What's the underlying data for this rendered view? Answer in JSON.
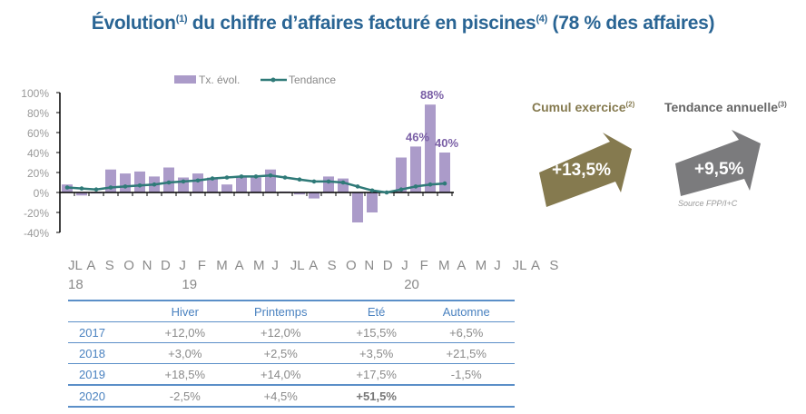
{
  "title": {
    "main": "Évolution",
    "sup1": "(1)",
    "mid": " du chiffre d’affaires facturé en piscines",
    "sup2": "(4)",
    "end": " (78 % des affaires)"
  },
  "chart_data": {
    "type": "bar",
    "legend": [
      "Tx. évol.",
      "Tendance"
    ],
    "legend_placement": "top",
    "ylim": [
      -40,
      100
    ],
    "yticks": [
      "100%",
      "80%",
      "60%",
      "40%",
      "20%",
      "0%",
      "-20%",
      "-40%"
    ],
    "ytick_values": [
      100,
      80,
      60,
      40,
      20,
      0,
      -20,
      -40
    ],
    "months": [
      "JL",
      "A",
      "S",
      "O",
      "N",
      "D",
      "J",
      "F",
      "M",
      "A",
      "M",
      "J",
      "JL",
      "A",
      "S",
      "O",
      "N",
      "D",
      "J",
      "F",
      "M",
      "A",
      "M",
      "J",
      "JL",
      "A",
      "S"
    ],
    "years": [
      {
        "label": "18",
        "month_index": 0
      },
      {
        "label": "19",
        "month_index": 6
      },
      {
        "label": "20",
        "month_index": 18
      }
    ],
    "series": [
      {
        "name": "Tx. évol.",
        "type": "bar",
        "color": "#ab9bc9",
        "values": [
          8,
          -3,
          -1,
          23,
          19,
          21,
          16,
          25,
          15,
          19,
          15,
          8,
          15,
          15,
          23,
          1,
          -2,
          -6,
          16,
          14,
          -30,
          -20,
          0,
          35,
          46,
          88,
          40
        ]
      },
      {
        "name": "Tendance",
        "type": "line",
        "color": "#2f7a78",
        "values": [
          5,
          4,
          3,
          5,
          6,
          7,
          8,
          10,
          11,
          12,
          14,
          15,
          16,
          16,
          17,
          15,
          13,
          11,
          11,
          10,
          6,
          2,
          0,
          3,
          6,
          8,
          9
        ]
      }
    ],
    "data_labels": [
      {
        "index": 24,
        "text": "46%"
      },
      {
        "index": 25,
        "text": "88%"
      },
      {
        "index": 26,
        "text": "40%"
      }
    ]
  },
  "kpis": [
    {
      "label": "Cumul exercice",
      "sup": "(2)",
      "value": "+13,5%",
      "color": "#857a4f"
    },
    {
      "label": "Tendance annuelle",
      "sup": "(3)",
      "value": "+9,5%",
      "color": "#7b7b7d"
    }
  ],
  "source": "Source FPP/I+C",
  "table": {
    "headers": [
      "",
      "Hiver",
      "Printemps",
      "Eté",
      "Automne"
    ],
    "rows": [
      {
        "year": "2017",
        "values": [
          "+12,0%",
          "+12,0%",
          "+15,5%",
          "+6,5%"
        ]
      },
      {
        "year": "2018",
        "values": [
          "+3,0%",
          "+2,5%",
          "+3,5%",
          "+21,5%"
        ]
      },
      {
        "year": "2019",
        "values": [
          "+18,5%",
          "+14,0%",
          "+17,5%",
          "-1,5%"
        ]
      },
      {
        "year": "2020",
        "values": [
          "-2,5%",
          "+4,5%",
          "+51,5%",
          ""
        ]
      }
    ]
  }
}
